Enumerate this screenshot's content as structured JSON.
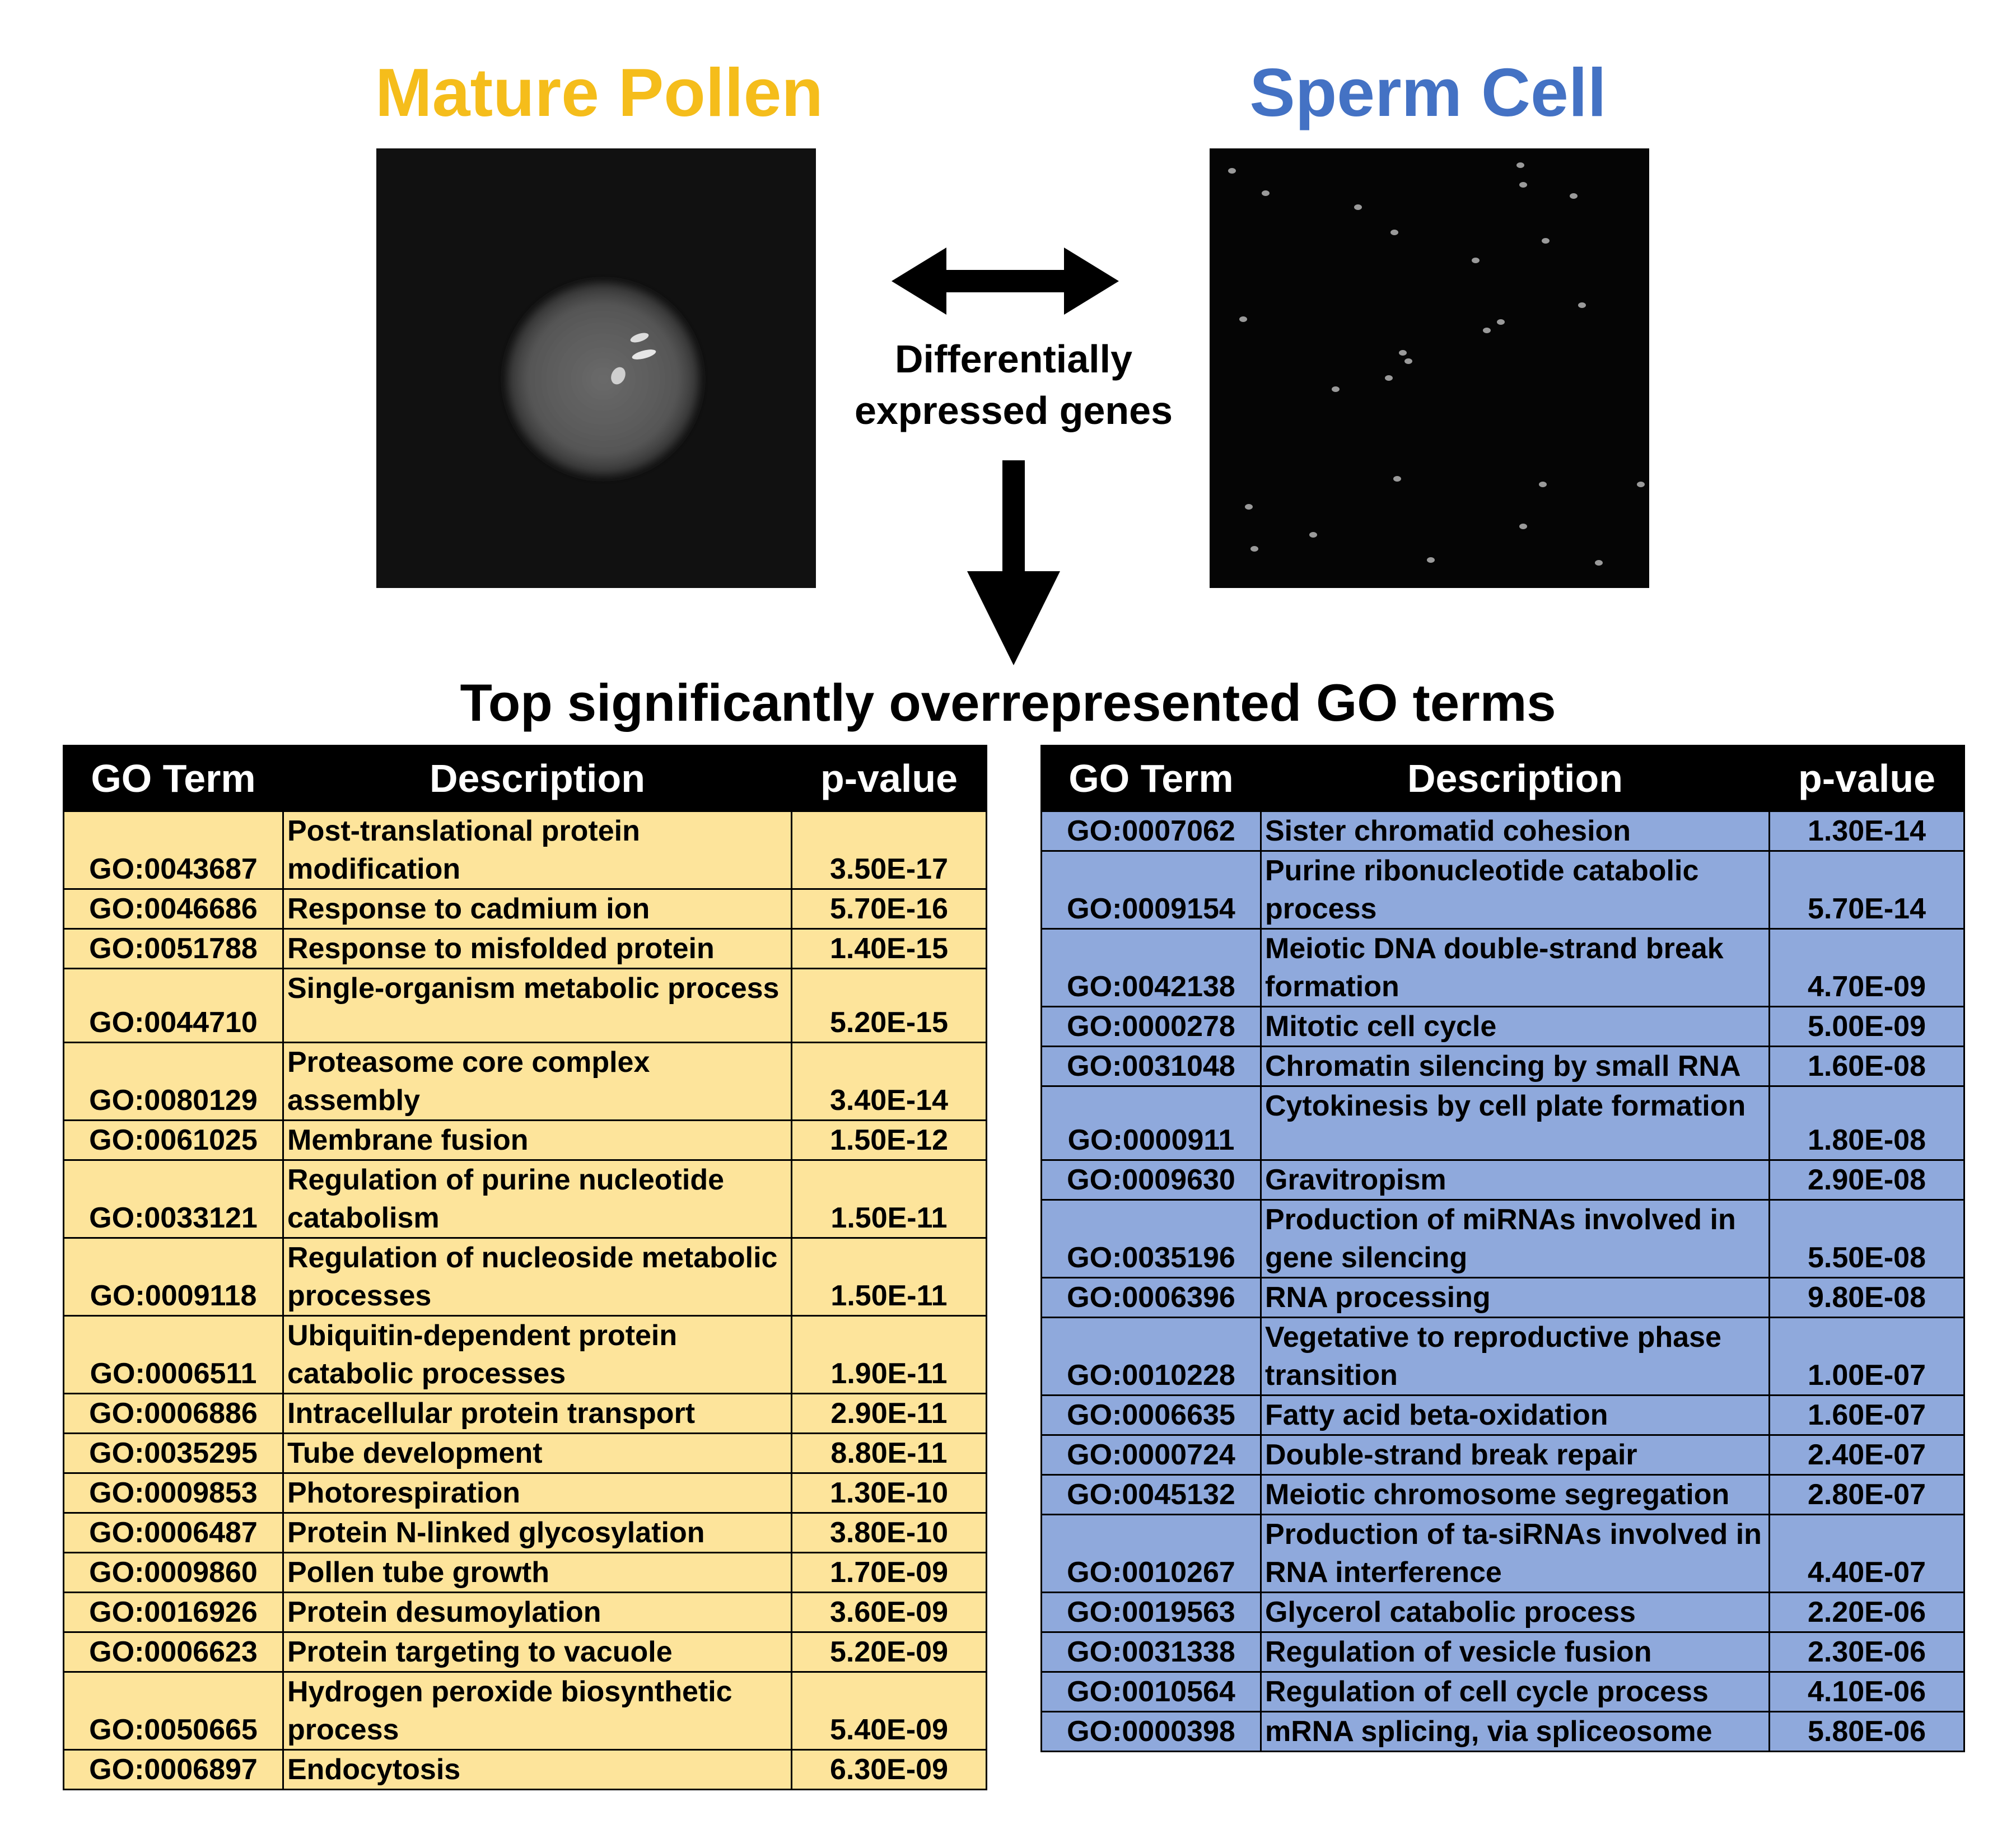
{
  "titles": {
    "left": "Mature Pollen",
    "right": "Sperm Cell"
  },
  "colors": {
    "pollen_title": "#F5BD1B",
    "sperm_title": "#4472C4",
    "pollen_row_bg": "#FDE49B",
    "sperm_row_bg": "#8FA9DC",
    "header_bg": "#000000",
    "header_text": "#FFFFFF"
  },
  "center_label": {
    "line1": "Differentially",
    "line2": "expressed genes"
  },
  "heading": "Top significantly overrepresented GO terms",
  "columns": {
    "term": "GO Term",
    "desc": "Description",
    "pvalue": "p-value"
  },
  "pollen_table": [
    {
      "id": "GO:0043687",
      "desc": "Post-translational protein modification",
      "p": "3.50E-17"
    },
    {
      "id": "GO:0046686",
      "desc": "Response to cadmium ion",
      "p": "5.70E-16"
    },
    {
      "id": "GO:0051788",
      "desc": "Response to misfolded protein",
      "p": "1.40E-15"
    },
    {
      "id": "GO:0044710",
      "desc": "Single-organism metabolic process",
      "p": "5.20E-15"
    },
    {
      "id": "GO:0080129",
      "desc": "Proteasome core complex assembly",
      "p": "3.40E-14"
    },
    {
      "id": "GO:0061025",
      "desc": "Membrane fusion",
      "p": "1.50E-12"
    },
    {
      "id": "GO:0033121",
      "desc": "Regulation of purine nucleotide catabolism",
      "p": "1.50E-11"
    },
    {
      "id": "GO:0009118",
      "desc": "Regulation of nucleoside metabolic processes",
      "p": "1.50E-11"
    },
    {
      "id": "GO:0006511",
      "desc": "Ubiquitin-dependent protein catabolic processes",
      "p": "1.90E-11"
    },
    {
      "id": "GO:0006886",
      "desc": "Intracellular protein transport",
      "p": "2.90E-11"
    },
    {
      "id": "GO:0035295",
      "desc": "Tube development",
      "p": "8.80E-11"
    },
    {
      "id": "GO:0009853",
      "desc": "Photorespiration",
      "p": "1.30E-10"
    },
    {
      "id": "GO:0006487",
      "desc": "Protein N-linked glycosylation",
      "p": "3.80E-10"
    },
    {
      "id": "GO:0009860",
      "desc": "Pollen tube growth",
      "p": "1.70E-09"
    },
    {
      "id": "GO:0016926",
      "desc": "Protein desumoylation",
      "p": "3.60E-09"
    },
    {
      "id": "GO:0006623",
      "desc": "Protein targeting to vacuole",
      "p": "5.20E-09"
    },
    {
      "id": "GO:0050665",
      "desc": "Hydrogen peroxide biosynthetic process",
      "p": "5.40E-09"
    },
    {
      "id": "GO:0006897",
      "desc": "Endocytosis",
      "p": "6.30E-09"
    }
  ],
  "sperm_table": [
    {
      "id": "GO:0007062",
      "desc": "Sister chromatid cohesion",
      "p": "1.30E-14"
    },
    {
      "id": "GO:0009154",
      "desc": "Purine ribonucleotide catabolic process",
      "p": "5.70E-14"
    },
    {
      "id": "GO:0042138",
      "desc": "Meiotic DNA double-strand break formation",
      "p": "4.70E-09"
    },
    {
      "id": "GO:0000278",
      "desc": "Mitotic cell cycle",
      "p": "5.00E-09"
    },
    {
      "id": "GO:0031048",
      "desc": "Chromatin silencing by small RNA",
      "p": "1.60E-08"
    },
    {
      "id": "GO:0000911",
      "desc": "Cytokinesis by cell plate formation",
      "p": "1.80E-08"
    },
    {
      "id": "GO:0009630",
      "desc": "Gravitropism",
      "p": "2.90E-08"
    },
    {
      "id": "GO:0035196",
      "desc": "Production of miRNAs involved in gene silencing",
      "p": "5.50E-08"
    },
    {
      "id": "GO:0006396",
      "desc": "RNA processing",
      "p": "9.80E-08"
    },
    {
      "id": "GO:0010228",
      "desc": "Vegetative to reproductive phase transition",
      "p": "1.00E-07"
    },
    {
      "id": "GO:0006635",
      "desc": "Fatty acid beta-oxidation",
      "p": "1.60E-07"
    },
    {
      "id": "GO:0000724",
      "desc": "Double-strand break repair",
      "p": "2.40E-07"
    },
    {
      "id": "GO:0045132",
      "desc": "Meiotic chromosome segregation",
      "p": "2.80E-07"
    },
    {
      "id": "GO:0010267",
      "desc": "Production of ta-siRNAs involved in RNA interference",
      "p": "4.40E-07"
    },
    {
      "id": "GO:0019563",
      "desc": "Glycerol catabolic process",
      "p": "2.20E-06"
    },
    {
      "id": "GO:0031338",
      "desc": "Regulation of vesicle fusion",
      "p": "2.30E-06"
    },
    {
      "id": "GO:0010564",
      "desc": "Regulation of cell cycle process",
      "p": "4.10E-06"
    },
    {
      "id": "GO:0000398",
      "desc": "mRNA splicing, via spliceosome",
      "p": "5.80E-06"
    }
  ]
}
